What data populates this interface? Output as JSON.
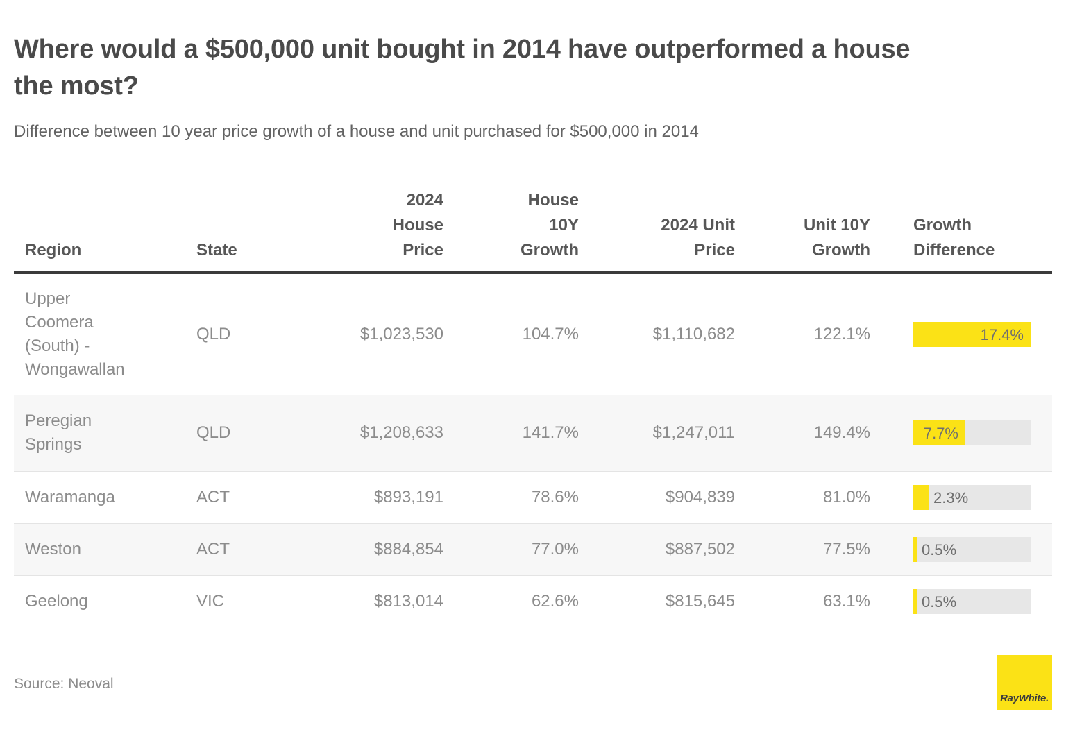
{
  "header": {
    "title": "Where would a $500,000 unit bought in 2014 have outperformed a house\nthe most?",
    "subtitle": "Difference between 10 year price growth of a house and unit purchased for $500,000 in 2014"
  },
  "table": {
    "header": {
      "region": "Region",
      "state": "State",
      "house_price": "2024\nHouse\nPrice",
      "house_growth": "House\n10Y\nGrowth",
      "unit_price": "2024 Unit\nPrice",
      "unit_growth": "Unit 10Y\nGrowth",
      "growth_diff": "Growth\nDifference"
    },
    "bar_max": 17.4,
    "rows": [
      {
        "region": "Upper\nCoomera\n(South) -\nWongawallan",
        "state": "QLD",
        "house_price": "$1,023,530",
        "house_growth": "104.7%",
        "unit_price": "$1,110,682",
        "unit_growth": "122.1%",
        "growth_diff_label": "17.4%",
        "growth_diff_value": 17.4
      },
      {
        "region": "Peregian\nSprings",
        "state": "QLD",
        "house_price": "$1,208,633",
        "house_growth": "141.7%",
        "unit_price": "$1,247,011",
        "unit_growth": "149.4%",
        "growth_diff_label": "7.7%",
        "growth_diff_value": 7.7
      },
      {
        "region": "Waramanga",
        "state": "ACT",
        "house_price": "$893,191",
        "house_growth": "78.6%",
        "unit_price": "$904,839",
        "unit_growth": "81.0%",
        "growth_diff_label": "2.3%",
        "growth_diff_value": 2.3
      },
      {
        "region": "Weston",
        "state": "ACT",
        "house_price": "$884,854",
        "house_growth": "77.0%",
        "unit_price": "$887,502",
        "unit_growth": "77.5%",
        "growth_diff_label": "0.5%",
        "growth_diff_value": 0.5
      },
      {
        "region": "Geelong",
        "state": "VIC",
        "house_price": "$813,014",
        "house_growth": "62.6%",
        "unit_price": "$815,645",
        "unit_growth": "63.1%",
        "growth_diff_label": "0.5%",
        "growth_diff_value": 0.5
      }
    ]
  },
  "chart_data": {
    "type": "table",
    "title": "Where would a $500,000 unit bought in 2014 have outperformed a house the most?",
    "subtitle": "Difference between 10 year price growth of a house and unit purchased for $500,000 in 2014",
    "columns": [
      "Region",
      "State",
      "2024 House Price",
      "House 10Y Growth",
      "2024 Unit Price",
      "Unit 10Y Growth",
      "Growth Difference"
    ],
    "rows": [
      [
        "Upper Coomera (South) - Wongawallan",
        "QLD",
        "$1,023,530",
        "104.7%",
        "$1,110,682",
        "122.1%",
        "17.4%"
      ],
      [
        "Peregian Springs",
        "QLD",
        "$1,208,633",
        "141.7%",
        "$1,247,011",
        "149.4%",
        "7.7%"
      ],
      [
        "Waramanga",
        "ACT",
        "$893,191",
        "78.6%",
        "$904,839",
        "81.0%",
        "2.3%"
      ],
      [
        "Weston",
        "ACT",
        "$884,854",
        "77.0%",
        "$887,502",
        "77.5%",
        "0.5%"
      ],
      [
        "Geelong",
        "VIC",
        "$813,014",
        "62.6%",
        "$815,645",
        "63.1%",
        "0.5%"
      ]
    ],
    "bar_column": "Growth Difference",
    "bar_values": [
      17.4,
      7.7,
      2.3,
      0.5,
      0.5
    ],
    "bar_axis_max": 17.4,
    "source": "Source: Neoval"
  },
  "footer": {
    "source": "Source: Neoval",
    "logo_text": "RayWhite."
  },
  "colors": {
    "accent_yellow": "#fbe216",
    "bar_track": "#e7e7e7",
    "header_rule": "#3b3b3b",
    "row_stripe": "#f7f7f7"
  }
}
